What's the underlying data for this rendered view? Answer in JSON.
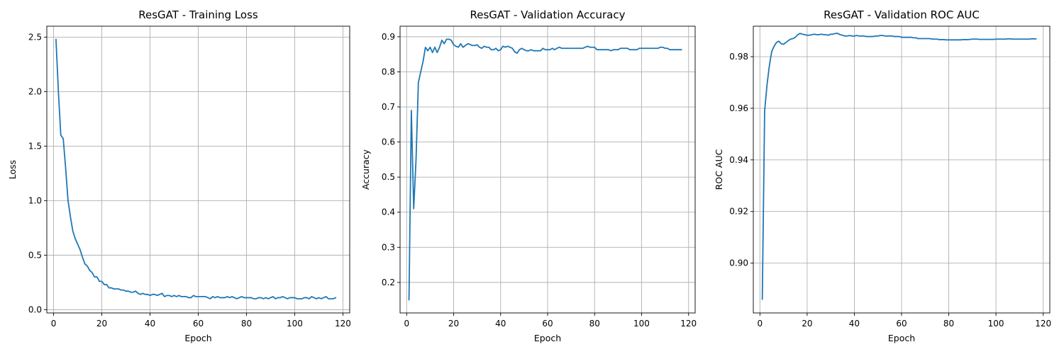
{
  "chart_data": [
    {
      "type": "line",
      "title": "ResGAT - Training Loss",
      "xlabel": "Epoch",
      "ylabel": "Loss",
      "xlim": [
        -2.8,
        122.8
      ],
      "ylim": [
        -0.03,
        2.6
      ],
      "xticks": [
        0,
        20,
        40,
        60,
        80,
        100,
        120
      ],
      "yticks": [
        0.0,
        0.5,
        1.0,
        1.5,
        2.0,
        2.5
      ],
      "ytick_decimals": 1,
      "grid": true,
      "color": "#1f77b4",
      "series": [
        {
          "x": [
            1,
            2,
            3,
            4,
            5,
            6,
            7,
            8,
            9,
            10,
            11,
            12,
            13,
            14,
            15,
            16,
            17,
            18,
            19,
            20,
            21,
            22,
            23,
            24,
            25,
            26,
            27,
            28,
            29,
            30,
            31,
            32,
            33,
            34,
            35,
            36,
            37,
            38,
            39,
            40,
            41,
            42,
            43,
            44,
            45,
            46,
            47,
            48,
            49,
            50,
            51,
            52,
            53,
            54,
            55,
            56,
            57,
            58,
            59,
            60,
            61,
            62,
            63,
            64,
            65,
            66,
            67,
            68,
            69,
            70,
            71,
            72,
            73,
            74,
            75,
            76,
            77,
            78,
            79,
            80,
            81,
            82,
            83,
            84,
            85,
            86,
            87,
            88,
            89,
            90,
            91,
            92,
            93,
            94,
            95,
            96,
            97,
            98,
            99,
            100,
            101,
            102,
            103,
            104,
            105,
            106,
            107,
            108,
            109,
            110,
            111,
            112,
            113,
            114,
            115,
            116,
            117
          ],
          "y": [
            2.48,
            2.0,
            1.6,
            1.57,
            1.3,
            1.0,
            0.85,
            0.72,
            0.65,
            0.6,
            0.55,
            0.48,
            0.42,
            0.4,
            0.36,
            0.34,
            0.3,
            0.3,
            0.26,
            0.26,
            0.23,
            0.23,
            0.2,
            0.2,
            0.19,
            0.19,
            0.19,
            0.18,
            0.18,
            0.17,
            0.17,
            0.16,
            0.16,
            0.17,
            0.15,
            0.14,
            0.15,
            0.14,
            0.14,
            0.13,
            0.14,
            0.14,
            0.13,
            0.14,
            0.15,
            0.12,
            0.13,
            0.13,
            0.12,
            0.13,
            0.12,
            0.13,
            0.12,
            0.12,
            0.12,
            0.11,
            0.11,
            0.13,
            0.12,
            0.12,
            0.12,
            0.12,
            0.12,
            0.11,
            0.1,
            0.12,
            0.11,
            0.12,
            0.11,
            0.11,
            0.11,
            0.12,
            0.11,
            0.12,
            0.11,
            0.1,
            0.11,
            0.12,
            0.11,
            0.11,
            0.11,
            0.11,
            0.1,
            0.1,
            0.11,
            0.11,
            0.1,
            0.11,
            0.1,
            0.11,
            0.12,
            0.1,
            0.11,
            0.11,
            0.12,
            0.11,
            0.1,
            0.11,
            0.11,
            0.11,
            0.1,
            0.1,
            0.1,
            0.11,
            0.11,
            0.1,
            0.12,
            0.11,
            0.1,
            0.11,
            0.1,
            0.11,
            0.12,
            0.1,
            0.1,
            0.1,
            0.11
          ]
        }
      ]
    },
    {
      "type": "line",
      "title": "ResGAT - Validation Accuracy",
      "xlabel": "Epoch",
      "ylabel": "Accuracy",
      "xlim": [
        -2.8,
        122.8
      ],
      "ylim": [
        0.113,
        0.93
      ],
      "xticks": [
        0,
        20,
        40,
        60,
        80,
        100,
        120
      ],
      "yticks": [
        0.2,
        0.3,
        0.4,
        0.5,
        0.6,
        0.7,
        0.8,
        0.9
      ],
      "ytick_decimals": 1,
      "grid": true,
      "color": "#1f77b4",
      "series": [
        {
          "x": [
            1,
            2,
            3,
            4,
            5,
            6,
            7,
            8,
            9,
            10,
            11,
            12,
            13,
            14,
            15,
            16,
            17,
            18,
            19,
            20,
            21,
            22,
            23,
            24,
            25,
            26,
            27,
            28,
            29,
            30,
            31,
            32,
            33,
            34,
            35,
            36,
            37,
            38,
            39,
            40,
            41,
            42,
            43,
            44,
            45,
            46,
            47,
            48,
            49,
            50,
            51,
            52,
            53,
            54,
            55,
            56,
            57,
            58,
            59,
            60,
            61,
            62,
            63,
            64,
            65,
            66,
            67,
            68,
            69,
            70,
            71,
            72,
            73,
            74,
            75,
            76,
            77,
            78,
            79,
            80,
            81,
            82,
            83,
            84,
            85,
            86,
            87,
            88,
            89,
            90,
            91,
            92,
            93,
            94,
            95,
            96,
            97,
            98,
            99,
            100,
            101,
            102,
            103,
            104,
            105,
            106,
            107,
            108,
            109,
            110,
            111,
            112,
            113,
            114,
            115,
            116,
            117
          ],
          "y": [
            0.15,
            0.69,
            0.41,
            0.55,
            0.77,
            0.8,
            0.83,
            0.87,
            0.86,
            0.87,
            0.855,
            0.87,
            0.855,
            0.87,
            0.89,
            0.88,
            0.893,
            0.893,
            0.89,
            0.877,
            0.873,
            0.87,
            0.88,
            0.87,
            0.875,
            0.88,
            0.878,
            0.875,
            0.875,
            0.877,
            0.87,
            0.867,
            0.873,
            0.87,
            0.87,
            0.863,
            0.863,
            0.867,
            0.86,
            0.863,
            0.873,
            0.87,
            0.873,
            0.87,
            0.867,
            0.857,
            0.853,
            0.863,
            0.867,
            0.863,
            0.86,
            0.86,
            0.863,
            0.86,
            0.86,
            0.86,
            0.86,
            0.867,
            0.863,
            0.863,
            0.863,
            0.867,
            0.863,
            0.867,
            0.87,
            0.867,
            0.867,
            0.867,
            0.867,
            0.867,
            0.867,
            0.867,
            0.867,
            0.867,
            0.867,
            0.87,
            0.873,
            0.87,
            0.87,
            0.87,
            0.863,
            0.863,
            0.863,
            0.863,
            0.863,
            0.863,
            0.86,
            0.863,
            0.863,
            0.863,
            0.867,
            0.867,
            0.867,
            0.867,
            0.863,
            0.863,
            0.863,
            0.863,
            0.867,
            0.867,
            0.867,
            0.867,
            0.867,
            0.867,
            0.867,
            0.867,
            0.867,
            0.87,
            0.87,
            0.867,
            0.867,
            0.863,
            0.863,
            0.863,
            0.863,
            0.863,
            0.863
          ]
        }
      ]
    },
    {
      "type": "line",
      "title": "ResGAT - Validation ROC AUC",
      "xlabel": "Epoch",
      "ylabel": "ROC AUC",
      "xlim": [
        -2.8,
        122.8
      ],
      "ylim": [
        0.8807,
        0.9918
      ],
      "xticks": [
        0,
        20,
        40,
        60,
        80,
        100,
        120
      ],
      "yticks": [
        0.9,
        0.92,
        0.94,
        0.96,
        0.98
      ],
      "ytick_decimals": 2,
      "grid": true,
      "color": "#1f77b4",
      "series": [
        {
          "x": [
            1,
            2,
            3,
            4,
            5,
            6,
            7,
            8,
            9,
            10,
            11,
            12,
            13,
            14,
            15,
            16,
            17,
            18,
            19,
            20,
            21,
            22,
            23,
            24,
            25,
            26,
            27,
            28,
            29,
            30,
            31,
            32,
            33,
            34,
            35,
            36,
            37,
            38,
            39,
            40,
            41,
            42,
            43,
            44,
            45,
            46,
            47,
            48,
            49,
            50,
            51,
            52,
            53,
            54,
            55,
            56,
            57,
            58,
            59,
            60,
            61,
            62,
            63,
            64,
            65,
            66,
            67,
            68,
            69,
            70,
            71,
            72,
            73,
            74,
            75,
            76,
            77,
            78,
            79,
            80,
            81,
            82,
            83,
            84,
            85,
            86,
            87,
            88,
            89,
            90,
            91,
            92,
            93,
            94,
            95,
            96,
            97,
            98,
            99,
            100,
            101,
            102,
            103,
            104,
            105,
            106,
            107,
            108,
            109,
            110,
            111,
            112,
            113,
            114,
            115,
            116,
            117
          ],
          "y": [
            0.886,
            0.959,
            0.969,
            0.9765,
            0.982,
            0.984,
            0.9855,
            0.986,
            0.985,
            0.9848,
            0.9855,
            0.9862,
            0.9868,
            0.987,
            0.9875,
            0.9885,
            0.989,
            0.9887,
            0.9885,
            0.9883,
            0.9883,
            0.9885,
            0.9887,
            0.9885,
            0.9885,
            0.9887,
            0.9885,
            0.9885,
            0.9883,
            0.9887,
            0.9887,
            0.989,
            0.989,
            0.9885,
            0.9883,
            0.988,
            0.988,
            0.9882,
            0.988,
            0.988,
            0.9882,
            0.988,
            0.988,
            0.988,
            0.9878,
            0.9878,
            0.9878,
            0.9878,
            0.988,
            0.988,
            0.9882,
            0.9882,
            0.988,
            0.988,
            0.988,
            0.988,
            0.9878,
            0.9878,
            0.9878,
            0.9875,
            0.9875,
            0.9875,
            0.9875,
            0.9875,
            0.9873,
            0.9873,
            0.987,
            0.987,
            0.987,
            0.987,
            0.987,
            0.987,
            0.9868,
            0.9868,
            0.9868,
            0.9866,
            0.9866,
            0.9866,
            0.9865,
            0.9865,
            0.9865,
            0.9865,
            0.9865,
            0.9865,
            0.9865,
            0.9866,
            0.9866,
            0.9866,
            0.9867,
            0.9868,
            0.9868,
            0.9868,
            0.9867,
            0.9867,
            0.9867,
            0.9867,
            0.9867,
            0.9867,
            0.9867,
            0.9868,
            0.9868,
            0.9868,
            0.9868,
            0.9868,
            0.9869,
            0.9869,
            0.9868,
            0.9868,
            0.9868,
            0.9868,
            0.9868,
            0.9868,
            0.9868,
            0.9868,
            0.9869,
            0.9869,
            0.9869
          ]
        }
      ]
    }
  ]
}
